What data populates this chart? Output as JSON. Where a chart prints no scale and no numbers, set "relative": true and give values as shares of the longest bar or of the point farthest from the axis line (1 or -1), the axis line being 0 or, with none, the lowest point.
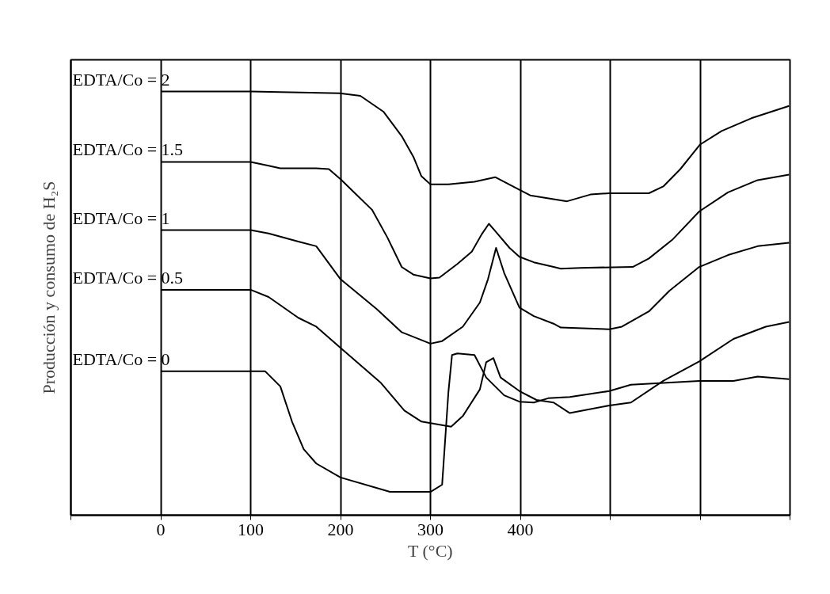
{
  "chart_data": {
    "type": "line",
    "relative": true,
    "xlabel": "T (°C)",
    "ylabel": "Producción y consumo de H₂S",
    "xlim": [
      -100,
      700
    ],
    "xticks": [
      {
        "value": -100,
        "label": null
      },
      0,
      100,
      200,
      300,
      400,
      {
        "value": 500,
        "label": null
      },
      {
        "value": 600,
        "label": null
      },
      {
        "value": 700,
        "label": null
      }
    ],
    "grid": "x",
    "legend": false,
    "series": [
      {
        "name": "EDTA/Co = 2",
        "color": "#000000",
        "x": [
          0,
          100,
          199,
          222,
          248,
          268,
          281,
          290,
          300,
          320,
          349,
          372,
          399,
          411,
          452,
          478,
          499,
          543,
          559,
          578,
          600,
          624,
          657,
          699
        ],
        "values": [
          1.0,
          1.0,
          0.996,
          0.99,
          0.952,
          0.895,
          0.846,
          0.8,
          0.781,
          0.781,
          0.787,
          0.798,
          0.768,
          0.755,
          0.741,
          0.757,
          0.76,
          0.76,
          0.776,
          0.817,
          0.875,
          0.907,
          0.937,
          0.966
        ]
      },
      {
        "name": "EDTA/Co = 1.5",
        "color": "#000000",
        "x": [
          0,
          100,
          120,
          133,
          173,
          187,
          200,
          235,
          252,
          268,
          281,
          300,
          310,
          330,
          346,
          357,
          365,
          372,
          388,
          399,
          415,
          437,
          445,
          467,
          525,
          543,
          569,
          599,
          631,
          664,
          699
        ],
        "values": [
          0.834,
          0.834,
          0.825,
          0.819,
          0.819,
          0.817,
          0.793,
          0.721,
          0.656,
          0.586,
          0.568,
          0.559,
          0.561,
          0.593,
          0.622,
          0.663,
          0.688,
          0.671,
          0.631,
          0.61,
          0.597,
          0.586,
          0.582,
          0.584,
          0.586,
          0.606,
          0.65,
          0.717,
          0.762,
          0.791,
          0.804
        ]
      },
      {
        "name": "EDTA/Co = 1",
        "color": "#000000",
        "x": [
          0,
          100,
          120,
          153,
          173,
          200,
          240,
          268,
          300,
          313,
          336,
          355,
          364,
          373,
          382,
          399,
          415,
          437,
          445,
          499,
          513,
          543,
          566,
          599,
          631,
          664,
          699
        ],
        "values": [
          0.673,
          0.673,
          0.665,
          0.646,
          0.635,
          0.557,
          0.487,
          0.432,
          0.405,
          0.411,
          0.445,
          0.502,
          0.557,
          0.631,
          0.572,
          0.49,
          0.47,
          0.452,
          0.443,
          0.439,
          0.445,
          0.481,
          0.53,
          0.586,
          0.614,
          0.635,
          0.643
        ]
      },
      {
        "name": "EDTA/Co = 0.5",
        "color": "#000000",
        "x": [
          0,
          100,
          120,
          153,
          173,
          200,
          245,
          271,
          290,
          323,
          336,
          355,
          362,
          370,
          378,
          399,
          418,
          437,
          455,
          499,
          523,
          559,
          599,
          637,
          673,
          699
        ],
        "values": [
          0.532,
          0.532,
          0.515,
          0.466,
          0.445,
          0.395,
          0.312,
          0.247,
          0.221,
          0.209,
          0.234,
          0.297,
          0.361,
          0.371,
          0.325,
          0.293,
          0.272,
          0.266,
          0.241,
          0.259,
          0.266,
          0.317,
          0.363,
          0.416,
          0.445,
          0.456
        ]
      },
      {
        "name": "EDTA/Co = 0",
        "color": "#000000",
        "x": [
          0,
          116,
          133,
          146,
          159,
          173,
          200,
          255,
          300,
          313,
          320,
          324,
          330,
          349,
          362,
          382,
          399,
          415,
          431,
          455,
          499,
          523,
          559,
          599,
          637,
          664,
          699
        ],
        "values": [
          0.34,
          0.34,
          0.304,
          0.221,
          0.156,
          0.122,
          0.089,
          0.055,
          0.055,
          0.072,
          0.291,
          0.378,
          0.382,
          0.378,
          0.325,
          0.283,
          0.268,
          0.266,
          0.276,
          0.279,
          0.293,
          0.308,
          0.312,
          0.317,
          0.317,
          0.327,
          0.321
        ]
      }
    ]
  }
}
